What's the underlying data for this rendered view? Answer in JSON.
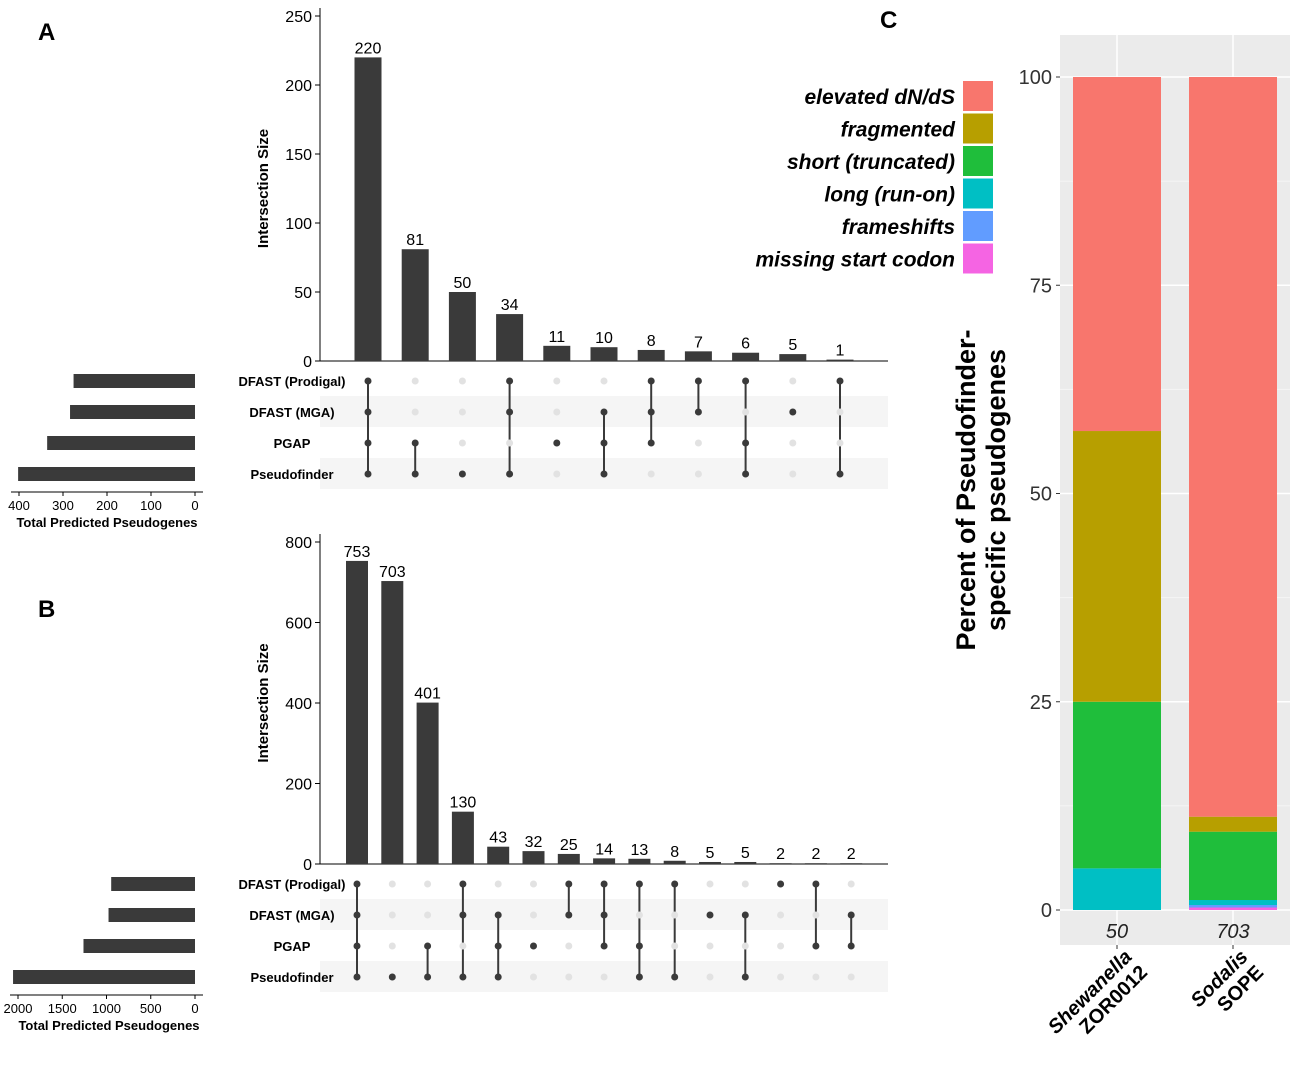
{
  "chart_data": [
    {
      "panel_label": "A",
      "type": "upset",
      "ylabel": "Intersection Size",
      "ylim": [
        0,
        250
      ],
      "yticks": [
        0,
        50,
        100,
        150,
        200,
        250
      ],
      "sets": [
        "DFAST (Prodigal)",
        "DFAST (MGA)",
        "PGAP",
        "Pseudofinder"
      ],
      "set_sizes": [
        276,
        284,
        336,
        402
      ],
      "set_size_label": "Total Predicted Pseudogenes",
      "set_size_ticks": [
        400,
        300,
        200,
        100,
        0
      ],
      "set_size_max": 400,
      "values": [
        220,
        81,
        50,
        34,
        11,
        10,
        8,
        7,
        6,
        5,
        1
      ],
      "membership": [
        [
          1,
          1,
          1,
          1
        ],
        [
          0,
          0,
          1,
          1
        ],
        [
          0,
          0,
          0,
          1
        ],
        [
          1,
          1,
          0,
          1
        ],
        [
          0,
          0,
          1,
          0
        ],
        [
          0,
          1,
          1,
          1
        ],
        [
          1,
          1,
          1,
          0
        ],
        [
          1,
          1,
          0,
          0
        ],
        [
          1,
          0,
          1,
          1
        ],
        [
          0,
          1,
          0,
          0
        ],
        [
          1,
          0,
          0,
          1
        ]
      ]
    },
    {
      "panel_label": "B",
      "type": "upset",
      "ylabel": "Intersection Size",
      "ylim": [
        0,
        850
      ],
      "yticks": [
        0,
        200,
        400,
        600,
        800
      ],
      "sets": [
        "DFAST (Prodigal)",
        "DFAST (MGA)",
        "PGAP",
        "Pseudofinder"
      ],
      "set_sizes": [
        947,
        977,
        1260,
        2056
      ],
      "set_size_label": "Total Predicted Pseudogenes",
      "set_size_ticks": [
        2000,
        1500,
        1000,
        500,
        0
      ],
      "set_size_max": 2000,
      "values": [
        753,
        703,
        401,
        130,
        43,
        32,
        25,
        14,
        13,
        8,
        5,
        5,
        2,
        2,
        2
      ],
      "membership": [
        [
          1,
          1,
          1,
          1
        ],
        [
          0,
          0,
          0,
          1
        ],
        [
          0,
          0,
          1,
          1
        ],
        [
          1,
          1,
          0,
          1
        ],
        [
          0,
          1,
          1,
          1
        ],
        [
          0,
          0,
          1,
          0
        ],
        [
          1,
          1,
          0,
          0
        ],
        [
          1,
          1,
          1,
          0
        ],
        [
          1,
          0,
          1,
          1
        ],
        [
          1,
          0,
          0,
          1
        ],
        [
          0,
          1,
          0,
          0
        ],
        [
          0,
          1,
          0,
          1
        ],
        [
          1,
          0,
          0,
          0
        ],
        [
          1,
          0,
          1,
          0
        ],
        [
          0,
          1,
          1,
          0
        ]
      ]
    },
    {
      "panel_label": "C",
      "type": "stacked_bar",
      "ylabel_line1": "Percent of Pseudofinder-",
      "ylabel_line2": "specific pseudogenes",
      "ylim": [
        0,
        100
      ],
      "yticks": [
        0,
        25,
        50,
        75,
        100
      ],
      "grid": true,
      "legend_placement": "top-left",
      "categories": [
        {
          "line1": "Shewanella",
          "line2": "ZOR0012",
          "n": "50"
        },
        {
          "line1": "Sodalis",
          "line2": "SOPE",
          "n": "703"
        }
      ],
      "series": [
        {
          "name": "missing start codon",
          "color": "#F564E3",
          "values": [
            0,
            0.3
          ]
        },
        {
          "name": "frameshifts",
          "color": "#619CFF",
          "values": [
            0,
            0.3
          ]
        },
        {
          "name": "long (run-on)",
          "color": "#00BFC4",
          "values": [
            5,
            0.6
          ]
        },
        {
          "name": "short (truncated)",
          "color": "#1FBE3B",
          "values": [
            20,
            8.2
          ]
        },
        {
          "name": "fragmented",
          "color": "#B79F00",
          "values": [
            32.5,
            1.8
          ]
        },
        {
          "name": "elevated dN/dS",
          "color": "#F8766D",
          "values": [
            42.5,
            88.8
          ]
        }
      ]
    }
  ]
}
